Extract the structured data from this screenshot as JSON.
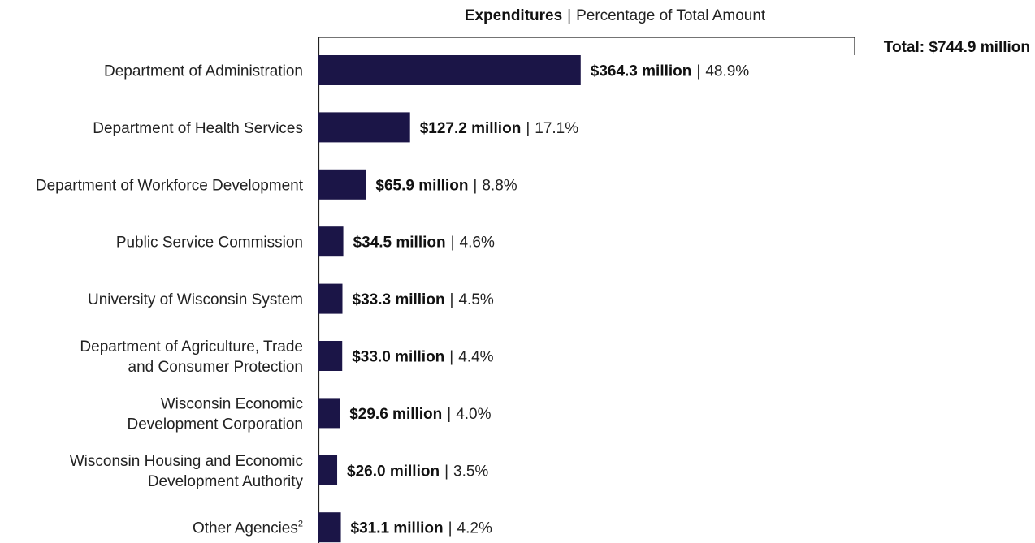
{
  "chart_data": {
    "type": "bar",
    "orientation": "horizontal",
    "title_bold": "Expenditures",
    "title_separator": "|",
    "title_rest": "Percentage of Total Amount",
    "total_label": "Total: $744.9 million",
    "total_value": 744.9,
    "bar_color": "#1b1547",
    "categories": [
      [
        "Department of Administration"
      ],
      [
        "Department of Health Services"
      ],
      [
        "Department of Workforce Development"
      ],
      [
        "Public Service Commission"
      ],
      [
        "University of Wisconsin System"
      ],
      [
        "Department of Agriculture, Trade",
        "and Consumer Protection"
      ],
      [
        "Wisconsin Economic",
        "Development Corporation"
      ],
      [
        "Wisconsin Housing and Economic",
        "Development Authority"
      ],
      [
        "Other Agencies"
      ]
    ],
    "footnote_markers": [
      "",
      "",
      "",
      "",
      "",
      "",
      "",
      "",
      "2"
    ],
    "values": [
      364.3,
      127.2,
      65.9,
      34.5,
      33.3,
      33.0,
      29.6,
      26.0,
      31.1
    ],
    "value_labels": [
      "$364.3 million",
      "$127.2 million",
      "$65.9 million",
      "$34.5 million",
      "$33.3 million",
      "$33.0 million",
      "$29.6 million",
      "$26.0 million",
      "$31.1 million"
    ],
    "percent_labels": [
      "48.9%",
      "17.1%",
      "8.8%",
      "4.6%",
      "4.5%",
      "4.4%",
      "4.0%",
      "3.5%",
      "4.2%"
    ],
    "separator": "|",
    "xlim": [
      0,
      744.9
    ],
    "grid": false,
    "legend": "none"
  }
}
